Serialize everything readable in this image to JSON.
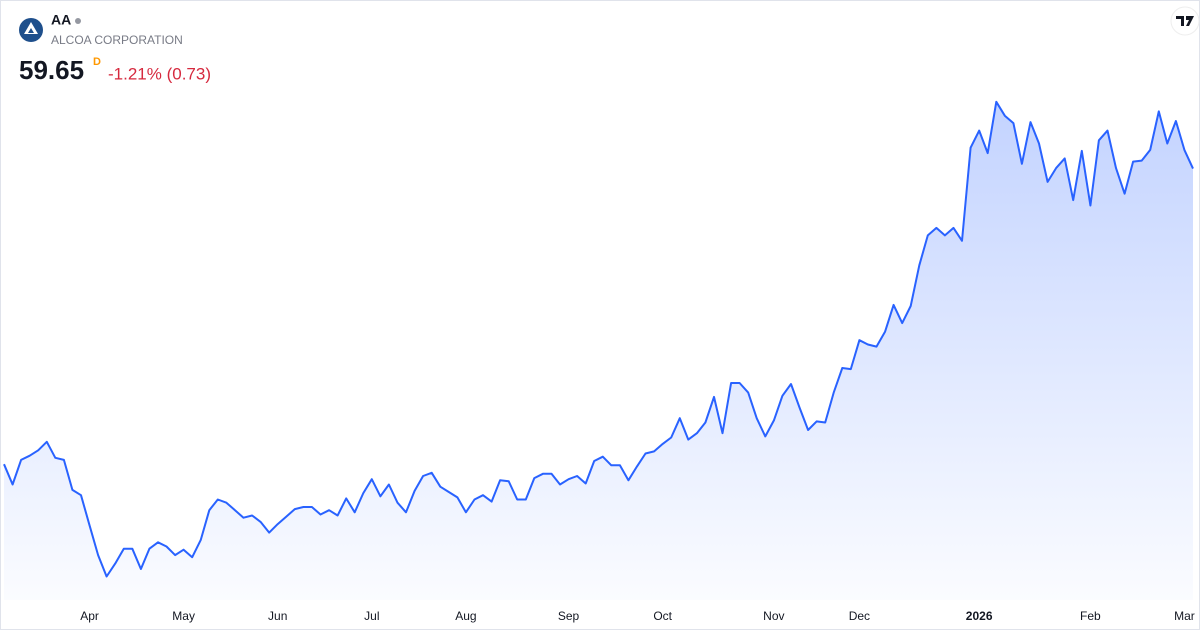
{
  "header": {
    "symbol": "AA",
    "name": "ALCOA CORPORATION",
    "price": 59.65,
    "interval": "D",
    "change": "-1.21% (0.73)"
  },
  "chart_data": {
    "type": "area",
    "color": "#2962ff",
    "categories": [
      null,
      null,
      null,
      null,
      null,
      null,
      null,
      null,
      null,
      null,
      "Apr",
      null,
      null,
      null,
      null,
      null,
      null,
      null,
      null,
      null,
      null,
      "May",
      null,
      null,
      null,
      null,
      null,
      null,
      null,
      null,
      null,
      null,
      "Jun",
      null,
      null,
      null,
      null,
      null,
      null,
      null,
      null,
      null,
      null,
      "Jul",
      null,
      null,
      null,
      null,
      null,
      null,
      null,
      null,
      null,
      null,
      "Aug",
      null,
      null,
      null,
      null,
      null,
      null,
      null,
      null,
      null,
      null,
      null,
      "Sep",
      null,
      null,
      null,
      null,
      null,
      null,
      null,
      null,
      null,
      null,
      "Oct",
      null,
      null,
      null,
      null,
      null,
      null,
      null,
      null,
      null,
      null,
      null,
      null,
      "Nov",
      null,
      null,
      null,
      null,
      null,
      null,
      null,
      null,
      null,
      "Dec",
      null,
      null,
      null,
      null,
      null,
      null,
      null,
      null,
      null,
      null,
      null,
      null,
      null,
      "2026",
      null,
      null,
      null,
      null,
      null,
      null,
      null,
      null,
      null,
      null,
      null,
      null,
      "Feb",
      null,
      null,
      null,
      null,
      null,
      null,
      null,
      null,
      null,
      null,
      "Mar",
      null
    ],
    "values": [
      32.0,
      30.1,
      32.4,
      32.8,
      33.3,
      34.1,
      32.6,
      32.4,
      29.6,
      29.1,
      26.3,
      23.5,
      21.5,
      22.7,
      24.1,
      24.1,
      22.2,
      24.1,
      24.7,
      24.3,
      23.5,
      24.0,
      23.3,
      24.9,
      27.7,
      28.7,
      28.4,
      27.7,
      27.0,
      27.2,
      26.6,
      25.6,
      26.4,
      27.1,
      27.8,
      28.0,
      28.0,
      27.3,
      27.7,
      27.2,
      28.8,
      27.5,
      29.3,
      30.6,
      29.0,
      30.1,
      28.4,
      27.5,
      29.5,
      30.9,
      31.2,
      29.9,
      29.4,
      28.9,
      27.5,
      28.7,
      29.1,
      28.5,
      30.5,
      30.4,
      28.7,
      28.7,
      30.7,
      31.1,
      31.1,
      30.1,
      30.6,
      30.9,
      30.2,
      32.3,
      32.7,
      31.9,
      31.9,
      30.5,
      31.8,
      33.0,
      33.2,
      33.9,
      34.5,
      36.3,
      34.3,
      34.9,
      35.9,
      38.3,
      34.9,
      39.6,
      39.6,
      38.7,
      36.3,
      34.6,
      36.1,
      38.4,
      39.5,
      37.3,
      35.2,
      36.0,
      35.9,
      38.7,
      41.0,
      40.9,
      43.6,
      43.2,
      43.0,
      44.4,
      46.9,
      45.2,
      46.8,
      50.6,
      53.4,
      54.1,
      53.4,
      54.1,
      52.9,
      61.6,
      63.2,
      61.1,
      65.9,
      64.6,
      63.9,
      60.1,
      64.0,
      62.0,
      58.4,
      59.7,
      60.6,
      56.7,
      61.3,
      56.2,
      62.3,
      63.2,
      59.7,
      57.3,
      60.3,
      60.4,
      61.4,
      65.0,
      62.0,
      64.1,
      61.4,
      59.65
    ],
    "ylim": [
      19.3,
      67.0
    ]
  }
}
